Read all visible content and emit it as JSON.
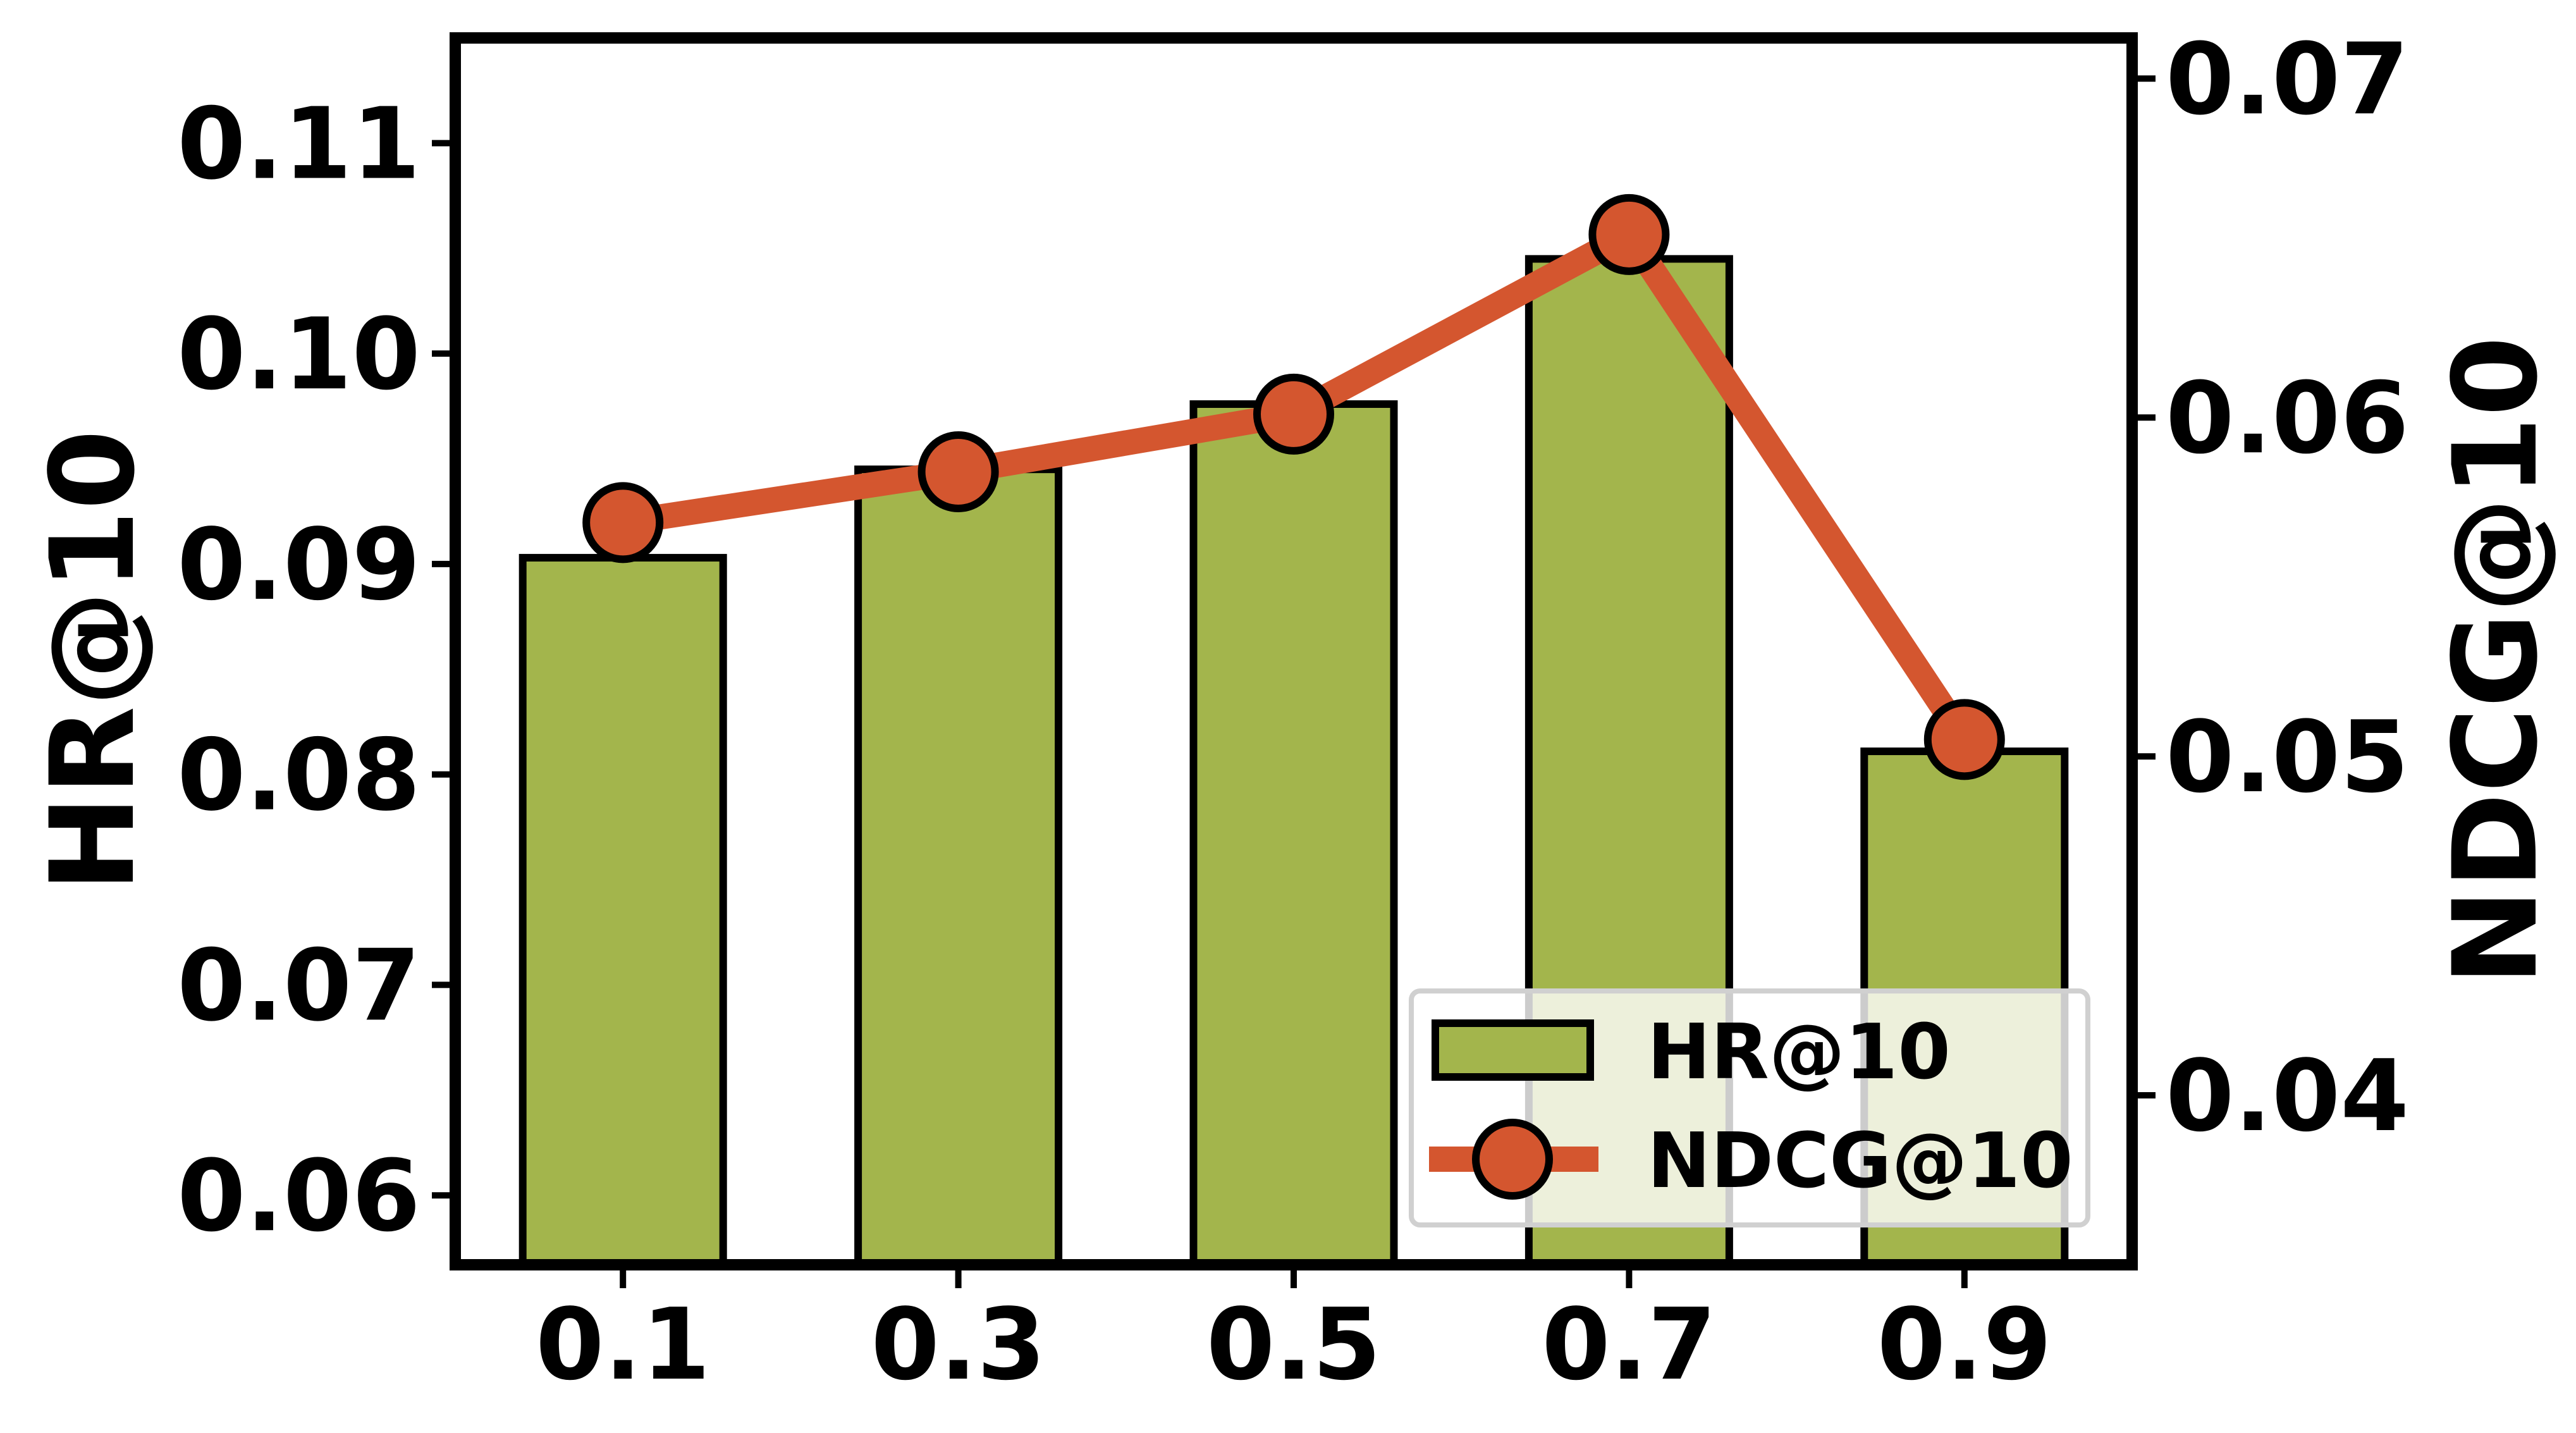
{
  "chart_data": {
    "type": "bar",
    "categories": [
      "0.1",
      "0.3",
      "0.5",
      "0.7",
      "0.9"
    ],
    "series": [
      {
        "name": "HR@10",
        "type": "bar",
        "axis": "left",
        "values": [
          0.0903,
          0.0945,
          0.0976,
          0.1045,
          0.0811
        ],
        "color": "#a3b54c"
      },
      {
        "name": "NDCG@10",
        "type": "line",
        "axis": "right",
        "values": [
          0.0569,
          0.0584,
          0.0601,
          0.0654,
          0.0505
        ],
        "color": "#d4562f"
      }
    ],
    "ylabel": "HR@10",
    "y2label": "NDCG@10",
    "ylim": [
      0.0567,
      0.115
    ],
    "y2lim": [
      0.035,
      0.0712
    ],
    "yticks": [
      "0.06",
      "0.07",
      "0.08",
      "0.09",
      "0.10",
      "0.11"
    ],
    "y2ticks": [
      "0.04",
      "0.05",
      "0.06",
      "0.07"
    ],
    "grid": false,
    "legend_position": "bottom-right",
    "legend": [
      "HR@10",
      "NDCG@10"
    ]
  }
}
